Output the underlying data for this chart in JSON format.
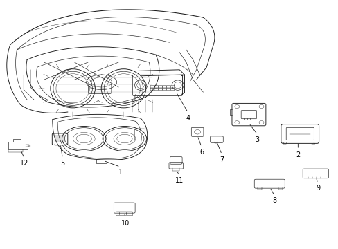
{
  "background_color": "#ffffff",
  "fig_width": 4.89,
  "fig_height": 3.6,
  "dpi": 100,
  "line_color": "#1a1a1a",
  "label_positions": {
    "1": [
      0.355,
      0.355,
      0.355,
      0.335
    ],
    "2": [
      0.88,
      0.42,
      0.88,
      0.4
    ],
    "3": [
      0.76,
      0.48,
      0.76,
      0.46
    ],
    "4": [
      0.555,
      0.57,
      0.555,
      0.55
    ],
    "5": [
      0.185,
      0.385,
      0.185,
      0.365
    ],
    "6": [
      0.595,
      0.43,
      0.595,
      0.41
    ],
    "7": [
      0.655,
      0.4,
      0.655,
      0.38
    ],
    "8": [
      0.81,
      0.215,
      0.81,
      0.195
    ],
    "9": [
      0.94,
      0.265,
      0.94,
      0.245
    ],
    "10": [
      0.37,
      0.115,
      0.37,
      0.095
    ],
    "11": [
      0.53,
      0.315,
      0.53,
      0.295
    ],
    "12": [
      0.072,
      0.385,
      0.072,
      0.365
    ]
  }
}
